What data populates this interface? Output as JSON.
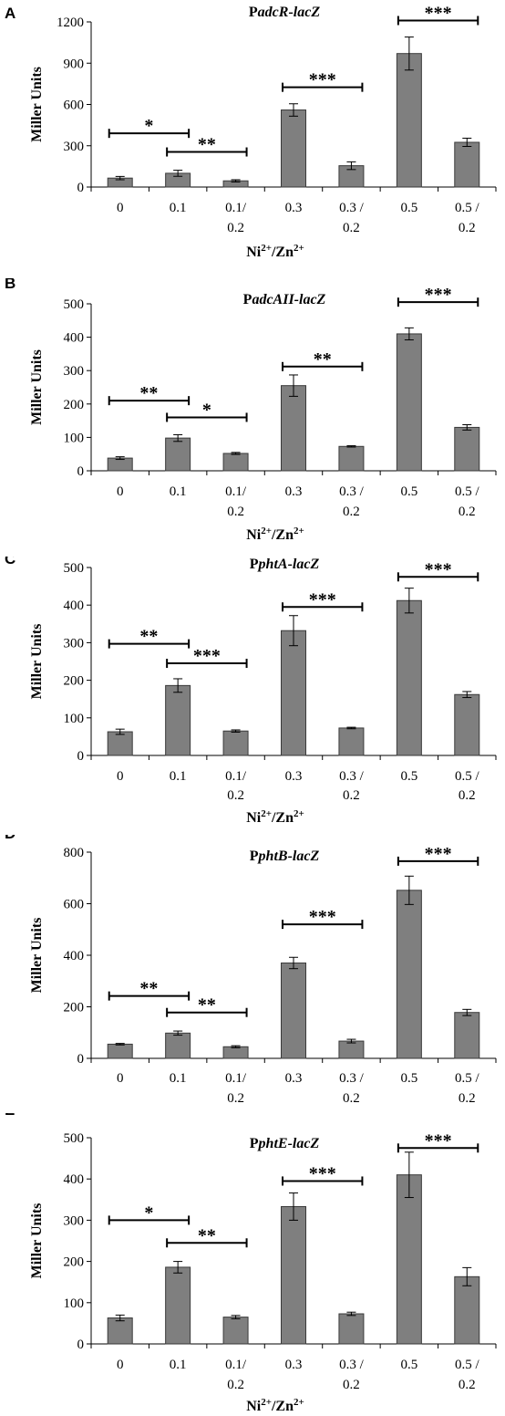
{
  "chart_data": [
    {
      "panel": "A",
      "type": "bar",
      "title_prefix": "P",
      "title_italic": "adcR-lacZ",
      "ylabel": "Miller Units",
      "xlabel": "Ni2+/Zn2+",
      "ylim": [
        0,
        1200
      ],
      "yticks": [
        "0",
        "300",
        "600",
        "900",
        "1200"
      ],
      "categories": [
        [
          "0"
        ],
        [
          "0.1"
        ],
        [
          "0.1/",
          "0.2"
        ],
        [
          "0.3"
        ],
        [
          "0.3 /",
          "0.2"
        ],
        [
          "0.5"
        ],
        [
          "0.5 /",
          "0.2"
        ]
      ],
      "values": [
        65,
        100,
        45,
        560,
        155,
        970,
        325
      ],
      "errors": [
        12,
        22,
        8,
        45,
        28,
        120,
        30
      ],
      "significance": [
        {
          "from": 0,
          "to": 1,
          "y": 390,
          "label": "*"
        },
        {
          "from": 1,
          "to": 2,
          "y": 255,
          "label": "**"
        },
        {
          "from": 3,
          "to": 4,
          "y": 725,
          "label": "***"
        },
        {
          "from": 5,
          "to": 6,
          "y": 1210,
          "label": "***"
        }
      ]
    },
    {
      "panel": "B",
      "type": "bar",
      "title_prefix": "P",
      "title_italic": "adcAII-lacZ",
      "ylabel": "Miller Units",
      "xlabel": "Ni2+/Zn2+",
      "ylim": [
        0,
        500
      ],
      "yticks": [
        "0",
        "100",
        "200",
        "300",
        "400",
        "500"
      ],
      "categories": [
        [
          "0"
        ],
        [
          "0.1"
        ],
        [
          "0.1/",
          "0.2"
        ],
        [
          "0.3"
        ],
        [
          "0.3 /",
          "0.2"
        ],
        [
          "0.5"
        ],
        [
          "0.5 /",
          "0.2"
        ]
      ],
      "values": [
        38,
        98,
        52,
        255,
        73,
        410,
        130
      ],
      "errors": [
        4,
        10,
        3,
        32,
        2,
        18,
        8
      ],
      "significance": [
        {
          "from": 0,
          "to": 1,
          "y": 210,
          "label": "**"
        },
        {
          "from": 1,
          "to": 2,
          "y": 160,
          "label": "*"
        },
        {
          "from": 3,
          "to": 4,
          "y": 312,
          "label": "**"
        },
        {
          "from": 5,
          "to": 6,
          "y": 505,
          "label": "***"
        }
      ]
    },
    {
      "panel": "C",
      "type": "bar",
      "title_prefix": "P",
      "title_italic": "phtA-lacZ",
      "ylabel": "Miller Units",
      "xlabel": "Ni2+/Zn2+",
      "ylim": [
        0,
        500
      ],
      "yticks": [
        "0",
        "100",
        "200",
        "300",
        "400",
        "500"
      ],
      "categories": [
        [
          "0"
        ],
        [
          "0.1"
        ],
        [
          "0.1/",
          "0.2"
        ],
        [
          "0.3"
        ],
        [
          "0.3 /",
          "0.2"
        ],
        [
          "0.5"
        ],
        [
          "0.5 /",
          "0.2"
        ]
      ],
      "values": [
        63,
        186,
        65,
        332,
        73,
        412,
        162
      ],
      "errors": [
        7,
        18,
        3,
        40,
        2,
        33,
        8
      ],
      "significance": [
        {
          "from": 0,
          "to": 1,
          "y": 297,
          "label": "**"
        },
        {
          "from": 1,
          "to": 2,
          "y": 245,
          "label": "***"
        },
        {
          "from": 3,
          "to": 4,
          "y": 395,
          "label": "***"
        },
        {
          "from": 5,
          "to": 6,
          "y": 475,
          "label": "***"
        }
      ]
    },
    {
      "panel": "D",
      "type": "bar",
      "title_prefix": "P",
      "title_italic": "phtB-lacZ",
      "ylabel": "Miller Units",
      "xlabel": "Ni2+/Zn2+",
      "ylim": [
        0,
        800
      ],
      "yticks": [
        "0",
        "200",
        "400",
        "600",
        "800"
      ],
      "categories": [
        [
          "0"
        ],
        [
          "0.1"
        ],
        [
          "0.1/",
          "0.2"
        ],
        [
          "0.3"
        ],
        [
          "0.3 /",
          "0.2"
        ],
        [
          "0.5"
        ],
        [
          "0.5 /",
          "0.2"
        ]
      ],
      "values": [
        55,
        98,
        45,
        370,
        67,
        652,
        178
      ],
      "errors": [
        3,
        8,
        4,
        22,
        7,
        55,
        12
      ],
      "significance": [
        {
          "from": 0,
          "to": 1,
          "y": 242,
          "label": "**"
        },
        {
          "from": 1,
          "to": 2,
          "y": 178,
          "label": "**"
        },
        {
          "from": 3,
          "to": 4,
          "y": 520,
          "label": "***"
        },
        {
          "from": 5,
          "to": 6,
          "y": 765,
          "label": "***"
        }
      ]
    },
    {
      "panel": "E",
      "type": "bar",
      "title_prefix": "P",
      "title_italic": "phtE-lacZ",
      "ylabel": "Miller Units",
      "xlabel": "Ni2+/Zn2+",
      "ylim": [
        0,
        500
      ],
      "yticks": [
        "0",
        "100",
        "200",
        "300",
        "400",
        "500"
      ],
      "categories": [
        [
          "0"
        ],
        [
          "0.1"
        ],
        [
          "0.1/",
          "0.2"
        ],
        [
          "0.3"
        ],
        [
          "0.3 /",
          "0.2"
        ],
        [
          "0.5"
        ],
        [
          "0.5 /",
          "0.2"
        ]
      ],
      "values": [
        63,
        186,
        65,
        333,
        73,
        410,
        163
      ],
      "errors": [
        7,
        14,
        4,
        33,
        4,
        55,
        22
      ],
      "significance": [
        {
          "from": 0,
          "to": 1,
          "y": 300,
          "label": "*"
        },
        {
          "from": 1,
          "to": 2,
          "y": 245,
          "label": "**"
        },
        {
          "from": 3,
          "to": 4,
          "y": 395,
          "label": "***"
        },
        {
          "from": 5,
          "to": 6,
          "y": 475,
          "label": "***"
        }
      ]
    }
  ]
}
